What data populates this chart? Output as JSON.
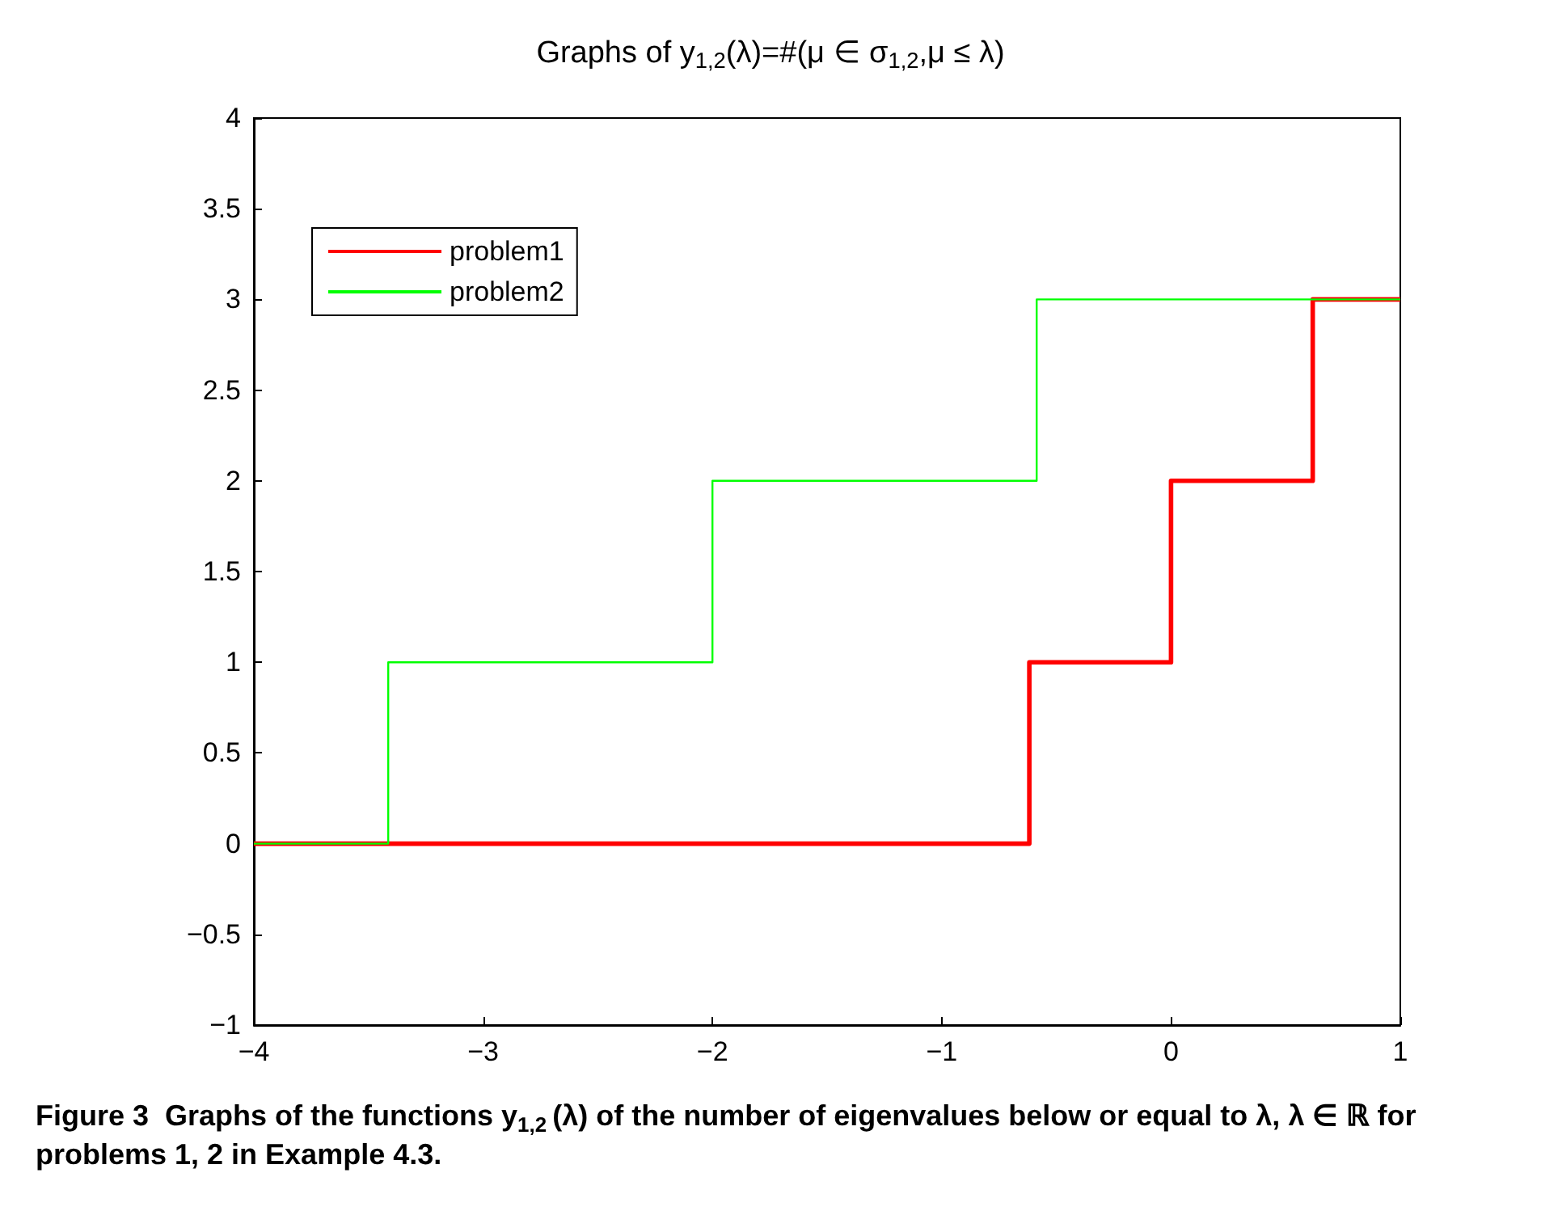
{
  "chart_data": {
    "type": "step",
    "title": "Graphs of y$_{1,2}$(λ)=#(μ ∈ σ$_{1,2}$,μ ≤ λ)",
    "series": [
      {
        "name": "problem1",
        "color": "#ff0000",
        "x": [
          -4,
          -0.618,
          0,
          0.618,
          1
        ],
        "values": [
          0,
          1,
          2,
          3,
          3
        ]
      },
      {
        "name": "problem2",
        "color": "#00ff00",
        "x": [
          -4,
          -3.414,
          -2,
          -0.586,
          1
        ],
        "values": [
          0,
          1,
          2,
          3,
          3
        ]
      }
    ],
    "xlim": [
      -4,
      1
    ],
    "xticks": [
      -4,
      -3,
      -2,
      -1,
      0,
      1
    ],
    "ylim": [
      -1,
      4
    ],
    "yticks": [
      -1,
      -0.5,
      0,
      0.5,
      1,
      1.5,
      2,
      2.5,
      3,
      3.5,
      4
    ],
    "grid": false,
    "legend": "top left",
    "line_style": "solid",
    "marker": "none",
    "annotations": [
      "Figure 3  Graphs of the functions y$_{1,2}$(λ) of the number of eigenvalues below or equal to λ, λ ∈ ℝ for problems 1, 2 in Example 4.3."
    ]
  }
}
